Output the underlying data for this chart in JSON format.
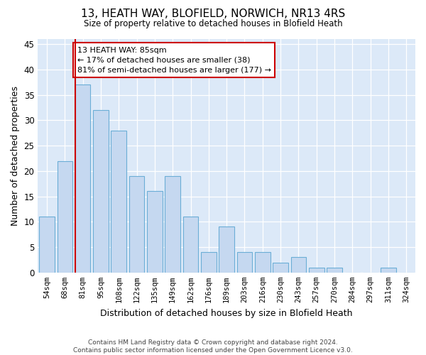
{
  "title": "13, HEATH WAY, BLOFIELD, NORWICH, NR13 4RS",
  "subtitle": "Size of property relative to detached houses in Blofield Heath",
  "xlabel": "Distribution of detached houses by size in Blofield Heath",
  "ylabel": "Number of detached properties",
  "footer_line1": "Contains HM Land Registry data © Crown copyright and database right 2024.",
  "footer_line2": "Contains public sector information licensed under the Open Government Licence v3.0.",
  "bar_labels": [
    "54sqm",
    "68sqm",
    "81sqm",
    "95sqm",
    "108sqm",
    "122sqm",
    "135sqm",
    "149sqm",
    "162sqm",
    "176sqm",
    "189sqm",
    "203sqm",
    "216sqm",
    "230sqm",
    "243sqm",
    "257sqm",
    "270sqm",
    "284sqm",
    "297sqm",
    "311sqm",
    "324sqm"
  ],
  "bar_values": [
    11,
    22,
    37,
    32,
    28,
    19,
    16,
    19,
    11,
    4,
    9,
    4,
    4,
    2,
    3,
    1,
    1,
    0,
    0,
    1,
    0
  ],
  "bar_color": "#c5d8f0",
  "bar_edge_color": "#6baed6",
  "background_color": "#ffffff",
  "plot_bg_color": "#dce9f8",
  "grid_color": "#ffffff",
  "red_line_index": 2,
  "annotation_line1": "13 HEATH WAY: 85sqm",
  "annotation_line2": "← 17% of detached houses are smaller (38)",
  "annotation_line3": "81% of semi-detached houses are larger (177) →",
  "red_line_color": "#cc0000",
  "ylim": [
    0,
    46
  ],
  "yticks": [
    0,
    5,
    10,
    15,
    20,
    25,
    30,
    35,
    40,
    45
  ]
}
